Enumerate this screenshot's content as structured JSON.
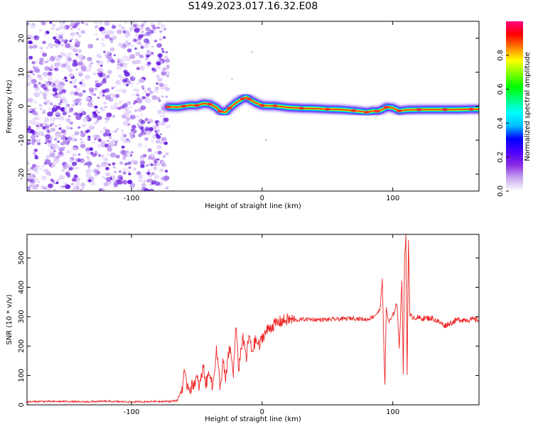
{
  "title": "S149.2023.017.16.32.E08",
  "chart_data": [
    {
      "type": "heatmap",
      "xlabel": "Height of straight line (km)",
      "ylabel": "Frequency (Hz)",
      "xlim": [
        -180,
        166
      ],
      "ylim": [
        -25,
        25
      ],
      "xticks": [
        -100,
        0,
        100
      ],
      "xtick_labels": [
        "-100",
        "0",
        "100"
      ],
      "yticks": [
        -20,
        -10,
        0,
        10,
        20
      ],
      "ytick_labels": [
        "-20",
        "-10",
        "0",
        "10",
        "20"
      ],
      "noise_region_x": [
        -180,
        -72
      ],
      "signal_track": {
        "x": [
          -72,
          -65,
          -60,
          -55,
          -50,
          -45,
          -40,
          -35,
          -32,
          -28,
          -25,
          -20,
          -15,
          -12,
          -10,
          -5,
          0,
          5,
          10,
          20,
          30,
          40,
          50,
          60,
          70,
          75,
          80,
          85,
          88,
          92,
          95,
          100,
          105,
          110,
          120,
          130,
          140,
          150,
          160,
          166
        ],
        "y": [
          -0.2,
          -0.3,
          0.0,
          0.3,
          0.2,
          0.8,
          0.6,
          -0.4,
          -1.5,
          -1.8,
          -0.6,
          1.0,
          2.2,
          2.6,
          2.1,
          1.0,
          0.2,
          0.1,
          0.1,
          -0.4,
          -0.6,
          -0.7,
          -0.9,
          -1.0,
          -1.3,
          -1.5,
          -1.8,
          -1.4,
          -1.5,
          -1.0,
          -0.3,
          -0.5,
          -1.4,
          -1.1,
          -1.0,
          -1.0,
          -1.0,
          -1.0,
          -0.9,
          -0.9
        ]
      },
      "colorbar": {
        "label": "Normalized spectral amplitude",
        "ticks": [
          0.0,
          0.2,
          0.4,
          0.6,
          0.8
        ],
        "tick_labels": [
          "0.0",
          "0.2",
          "0.4",
          "0.6",
          "0.8"
        ],
        "colors": [
          "#ffffff",
          "#c8a8f0",
          "#8a2be2",
          "#4b00ff",
          "#0000ff",
          "#00bfff",
          "#00ffff",
          "#00ff7f",
          "#00ff00",
          "#7fff00",
          "#ffff00",
          "#ff7f00",
          "#ff0000",
          "#ff0080"
        ]
      }
    },
    {
      "type": "line",
      "xlabel": "Height of straight line (km)",
      "ylabel": "SNR (10 * v/v)",
      "xlim": [
        -180,
        166
      ],
      "ylim": [
        0,
        580
      ],
      "xticks": [
        -100,
        0,
        100
      ],
      "xtick_labels": [
        "-100",
        "0",
        "100"
      ],
      "yticks": [
        0,
        100,
        200,
        300,
        400,
        500
      ],
      "ytick_labels": [
        "0",
        "100",
        "200",
        "300",
        "400",
        "500"
      ],
      "color": "#ee2222",
      "series": [
        {
          "x": [
            -180,
            -170,
            -160,
            -150,
            -140,
            -130,
            -120,
            -110,
            -100,
            -90,
            -80,
            -70,
            -65,
            -61,
            -60,
            -58,
            -55,
            -50,
            -48,
            -45,
            -43,
            -40,
            -38,
            -35,
            -32,
            -30,
            -28,
            -25,
            -22,
            -20,
            -18,
            -15,
            -12,
            -10,
            -8,
            -5,
            -2,
            0,
            5,
            10,
            15,
            20,
            25,
            30,
            35,
            40,
            50,
            60,
            70,
            80,
            85,
            90,
            92,
            94,
            95,
            97,
            100,
            103,
            105,
            107,
            108,
            109,
            110,
            111,
            112,
            113,
            115,
            120,
            130,
            140,
            150,
            160,
            166
          ],
          "y": [
            10,
            12,
            11,
            12,
            10,
            11,
            12,
            11,
            10,
            11,
            12,
            12,
            15,
            60,
            110,
            75,
            55,
            90,
            60,
            130,
            70,
            120,
            50,
            190,
            55,
            150,
            80,
            200,
            110,
            270,
            120,
            230,
            160,
            240,
            180,
            220,
            200,
            230,
            260,
            275,
            285,
            290,
            288,
            290,
            292,
            290,
            290,
            292,
            295,
            290,
            300,
            320,
            420,
            60,
            330,
            280,
            300,
            350,
            200,
            430,
            110,
            480,
            580,
            100,
            570,
            300,
            300,
            295,
            295,
            270,
            290,
            290,
            290
          ]
        }
      ]
    }
  ]
}
